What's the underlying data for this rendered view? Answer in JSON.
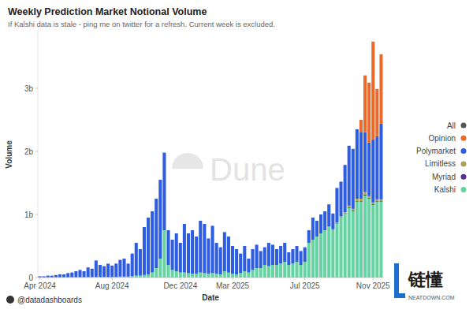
{
  "chart_data": {
    "type": "bar",
    "title": "Weekly Prediction Market Notional Volume",
    "subtitle": "If Kalshi data is stale - ping me on twitter for a refresh. Current week is excluded.",
    "x_label": "Date",
    "y_label": "Volume",
    "annotations": [
      "Dune",
      "@datadashboards",
      "链懂",
      "NEATDOWN.COM"
    ],
    "stacked": true,
    "grid": false,
    "legend": "right",
    "ylim": [
      0,
      3900000000.0
    ],
    "yticks": [
      0,
      {
        "value": 1000000000.0,
        "label": "1b"
      },
      {
        "value": 2000000000.0,
        "label": "2b"
      },
      {
        "value": 3000000000.0,
        "label": "3b"
      }
    ],
    "categories": [
      "Apr 2024",
      null,
      null,
      null,
      null,
      null,
      null,
      null,
      null,
      null,
      null,
      null,
      null,
      null,
      null,
      null,
      null,
      null,
      "Aug 2024",
      null,
      null,
      null,
      null,
      null,
      null,
      null,
      null,
      null,
      null,
      null,
      null,
      null,
      null,
      null,
      null,
      "Dec 2024",
      null,
      null,
      null,
      null,
      null,
      null,
      null,
      null,
      null,
      null,
      null,
      null,
      "Mar 2025",
      null,
      null,
      null,
      null,
      null,
      null,
      null,
      null,
      null,
      null,
      null,
      null,
      null,
      null,
      null,
      null,
      null,
      "Jul 2025",
      null,
      null,
      null,
      null,
      null,
      null,
      null,
      null,
      null,
      null,
      null,
      null,
      null,
      null,
      null,
      null,
      "Nov 2025",
      null,
      null
    ],
    "series": [
      {
        "name": "Kalshi",
        "color": "#66d3a3",
        "values": [
          3000000.0,
          3000000.0,
          3000000.0,
          4000000.0,
          4000000.0,
          5000000.0,
          5000000.0,
          5000000.0,
          6000000.0,
          6000000.0,
          7000000.0,
          7000000.0,
          8000000.0,
          8000000.0,
          10000000.0,
          10000000.0,
          10000000.0,
          10000000.0,
          10000000.0,
          12000000.0,
          15000000.0,
          15000000.0,
          15000000.0,
          20000000.0,
          30000000.0,
          30000000.0,
          40000000.0,
          50000000.0,
          80000000.0,
          150000000.0,
          300000000.0,
          750000000.0,
          200000000.0,
          120000000.0,
          100000000.0,
          80000000.0,
          80000000.0,
          70000000.0,
          60000000.0,
          60000000.0,
          80000000.0,
          70000000.0,
          60000000.0,
          70000000.0,
          60000000.0,
          50000000.0,
          100000000.0,
          80000000.0,
          60000000.0,
          50000000.0,
          70000000.0,
          100000000.0,
          80000000.0,
          120000000.0,
          150000000.0,
          150000000.0,
          200000000.0,
          180000000.0,
          200000000.0,
          200000000.0,
          220000000.0,
          250000000.0,
          200000000.0,
          220000000.0,
          250000000.0,
          200000000.0,
          250000000.0,
          550000000.0,
          600000000.0,
          650000000.0,
          700000000.0,
          750000000.0,
          800000000.0,
          750000000.0,
          850000000.0,
          950000000.0,
          1000000000.0,
          1100000000.0,
          1050000000.0,
          1200000000.0,
          1200000000.0,
          1300000000.0,
          1250000000.0,
          1150000000.0,
          1200000000.0,
          1200000000.0
        ]
      },
      {
        "name": "Myriad",
        "color": "#5a2d91",
        "values": [
          0,
          0,
          0,
          0,
          0,
          0,
          0,
          0,
          0,
          0,
          0,
          0,
          0,
          0,
          0,
          0,
          0,
          0,
          0,
          0,
          0,
          0,
          0,
          0,
          0,
          0,
          0,
          0,
          0,
          0,
          0,
          0,
          0,
          0,
          0,
          0,
          0,
          0,
          0,
          0,
          0,
          0,
          0,
          0,
          0,
          0,
          0,
          0,
          0,
          0,
          0,
          0,
          0,
          0,
          0,
          0,
          0,
          0,
          0,
          0,
          0,
          0,
          0,
          0,
          0,
          0,
          0,
          0,
          0,
          0,
          0,
          0,
          0,
          0,
          0,
          0,
          5000000.0,
          10000000.0,
          10000000.0,
          10000000.0,
          10000000.0,
          15000000.0,
          10000000.0,
          10000000.0,
          10000000.0,
          10000000.0
        ]
      },
      {
        "name": "Limitless",
        "color": "#a9a35e",
        "values": [
          0,
          0,
          0,
          0,
          0,
          0,
          0,
          0,
          0,
          0,
          0,
          0,
          0,
          0,
          0,
          0,
          0,
          0,
          0,
          0,
          0,
          0,
          0,
          0,
          0,
          0,
          0,
          0,
          0,
          0,
          0,
          0,
          0,
          0,
          0,
          0,
          0,
          0,
          0,
          0,
          0,
          0,
          0,
          0,
          0,
          0,
          0,
          0,
          0,
          0,
          0,
          0,
          0,
          0,
          0,
          0,
          0,
          0,
          0,
          0,
          0,
          0,
          0,
          0,
          0,
          0,
          0,
          0,
          0,
          0,
          0,
          0,
          10000000.0,
          15000000.0,
          20000000.0,
          20000000.0,
          30000000.0,
          30000000.0,
          30000000.0,
          40000000.0,
          40000000.0,
          40000000.0,
          30000000.0,
          30000000.0,
          30000000.0,
          30000000.0
        ]
      },
      {
        "name": "Polymarket",
        "color": "#2f5de0",
        "values": [
          17000000.0,
          17000000.0,
          27000000.0,
          26000000.0,
          36000000.0,
          45000000.0,
          45000000.0,
          65000000.0,
          74000000.0,
          94000000.0,
          113000000.0,
          93000000.0,
          152000000.0,
          132000000.0,
          260000000.0,
          190000000.0,
          170000000.0,
          210000000.0,
          180000000.0,
          208000000.0,
          265000000.0,
          285000000.0,
          205000000.0,
          360000000.0,
          520000000.0,
          420000000.0,
          760000000.0,
          900000000.0,
          970000000.0,
          1100000000.0,
          1250000000.0,
          1230000000.0,
          550000000.0,
          480000000.0,
          600000000.0,
          470000000.0,
          770000000.0,
          630000000.0,
          690000000.0,
          590000000.0,
          820000000.0,
          780000000.0,
          560000000.0,
          750000000.0,
          490000000.0,
          430000000.0,
          620000000.0,
          570000000.0,
          440000000.0,
          400000000.0,
          310000000.0,
          400000000.0,
          220000000.0,
          330000000.0,
          370000000.0,
          270000000.0,
          280000000.0,
          370000000.0,
          320000000.0,
          250000000.0,
          280000000.0,
          300000000.0,
          200000000.0,
          230000000.0,
          250000000.0,
          220000000.0,
          230000000.0,
          200000000.0,
          350000000.0,
          250000000.0,
          300000000.0,
          300000000.0,
          350000000.0,
          250000000.0,
          550000000.0,
          550000000.0,
          750000000.0,
          950000000.0,
          950000000.0,
          1100000000.0,
          1050000000.0,
          950000000.0,
          850000000.0,
          1000000000.0,
          1000000000.0,
          1200000000.0
        ]
      },
      {
        "name": "Opinion",
        "color": "#ea6a2c",
        "values": [
          0,
          0,
          0,
          0,
          0,
          0,
          0,
          0,
          0,
          0,
          0,
          0,
          0,
          0,
          0,
          0,
          0,
          0,
          0,
          0,
          0,
          0,
          0,
          0,
          0,
          0,
          0,
          0,
          0,
          0,
          0,
          0,
          0,
          0,
          0,
          0,
          0,
          0,
          0,
          0,
          0,
          0,
          0,
          0,
          0,
          0,
          0,
          0,
          0,
          0,
          0,
          0,
          0,
          0,
          0,
          0,
          0,
          0,
          0,
          0,
          0,
          0,
          0,
          0,
          0,
          0,
          0,
          0,
          0,
          0,
          0,
          0,
          0,
          0,
          0,
          0,
          0,
          0,
          0,
          0,
          200000000.0,
          900000000.0,
          950000000.0,
          1550000000.0,
          750000000.0,
          1100000000.0
        ]
      },
      {
        "name": "All",
        "color": "#555555",
        "values": [
          0,
          0,
          0,
          0,
          0,
          0,
          0,
          0,
          0,
          0,
          0,
          0,
          0,
          0,
          0,
          0,
          0,
          0,
          0,
          0,
          0,
          0,
          0,
          0,
          0,
          0,
          0,
          0,
          0,
          0,
          0,
          0,
          0,
          0,
          0,
          0,
          0,
          0,
          0,
          0,
          0,
          0,
          0,
          0,
          0,
          0,
          0,
          0,
          0,
          0,
          0,
          0,
          0,
          0,
          0,
          0,
          0,
          0,
          0,
          0,
          0,
          0,
          0,
          0,
          0,
          0,
          0,
          0,
          0,
          0,
          0,
          0,
          0,
          0,
          0,
          0,
          0,
          0,
          0,
          0,
          0,
          0,
          0,
          0,
          0,
          0
        ]
      }
    ]
  }
}
